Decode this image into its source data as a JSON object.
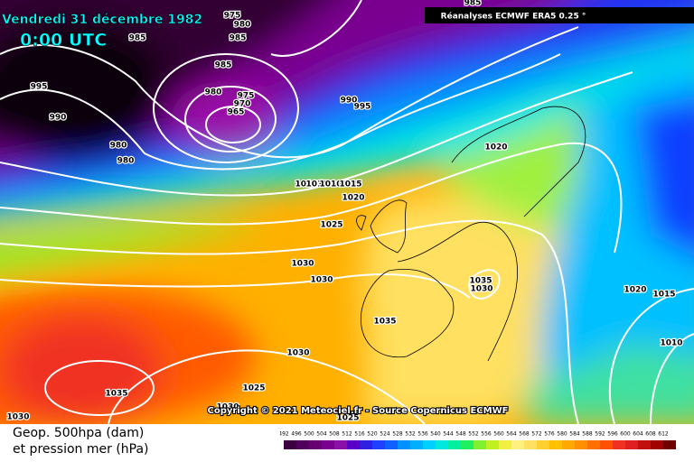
{
  "header": {
    "date": "Vendredi 31 décembre 1982",
    "time": "0:00 UTC",
    "source": "Réanalyses ECMWF ERA5 0.25 °"
  },
  "copyright": "Copyright © 2021 Meteociel.fr - Source Copernicus ECMWF",
  "legend": {
    "line1": "Geop. 500hpa (dam)",
    "line2": "et pression mer (hPa)"
  },
  "scale": {
    "ticks": [
      492,
      496,
      500,
      504,
      508,
      512,
      516,
      520,
      524,
      528,
      532,
      536,
      540,
      544,
      548,
      552,
      556,
      560,
      564,
      568,
      572,
      576,
      580,
      584,
      588,
      592,
      596,
      600,
      604,
      608,
      612
    ],
    "colors": [
      "#3a0040",
      "#50005a",
      "#660070",
      "#7a0090",
      "#8a10a8",
      "#5a00c8",
      "#3020e0",
      "#2040ff",
      "#1060ff",
      "#0090ff",
      "#00b0ff",
      "#00d0ff",
      "#00e8e0",
      "#00f0a0",
      "#20f060",
      "#80f030",
      "#c0f020",
      "#f0f040",
      "#fff080",
      "#ffe060",
      "#ffd030",
      "#ffc000",
      "#ffa800",
      "#ff9000",
      "#ff7000",
      "#ff5000",
      "#f03020",
      "#e02020",
      "#c01010",
      "#a00000",
      "#700000"
    ]
  },
  "isobar_labels": [
    985,
    975,
    980,
    985,
    985,
    985,
    995,
    980,
    975,
    970,
    965,
    990,
    990,
    995,
    980,
    980,
    1020,
    1010,
    1010,
    1010,
    1015,
    1020,
    1025,
    1030,
    1030,
    1035,
    1030,
    1035,
    1020,
    1015,
    1010,
    1030,
    1035,
    1025,
    1030,
    1025,
    1030
  ]
}
